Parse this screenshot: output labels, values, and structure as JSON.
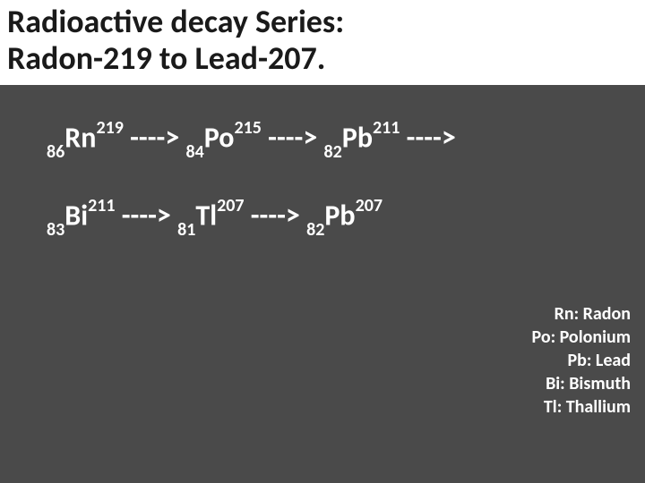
{
  "colors": {
    "background": "#4a4a4a",
    "title_bg": "#ffffff",
    "title_text": "#1a1a1a",
    "body_text": "#ffffff"
  },
  "title": {
    "line1": "Radioactive decay Series:",
    "line2": "Radon-219 to Lead-207.",
    "fontsize": 36,
    "fontweight": 700
  },
  "chain": {
    "arrow": "---->",
    "fontsize": 32,
    "sub_sup_fontsize": 20,
    "rows": [
      [
        {
          "z": "86",
          "sym": "Rn",
          "a": "219"
        },
        {
          "z": "84",
          "sym": "Po",
          "a": "215"
        },
        {
          "z": "82",
          "sym": "Pb",
          "a": "211"
        }
      ],
      [
        {
          "z": "83",
          "sym": "Bi",
          "a": "211"
        },
        {
          "z": "81",
          "sym": "Tl",
          "a": "207"
        },
        {
          "z": "82",
          "sym": "Pb",
          "a": "207"
        }
      ]
    ],
    "trailing_arrow_first_row": true
  },
  "legend": {
    "fontsize": 20,
    "items": [
      "Rn: Radon",
      "Po: Polonium",
      "Pb: Lead",
      "Bi: Bismuth",
      "Tl: Thallium"
    ]
  }
}
